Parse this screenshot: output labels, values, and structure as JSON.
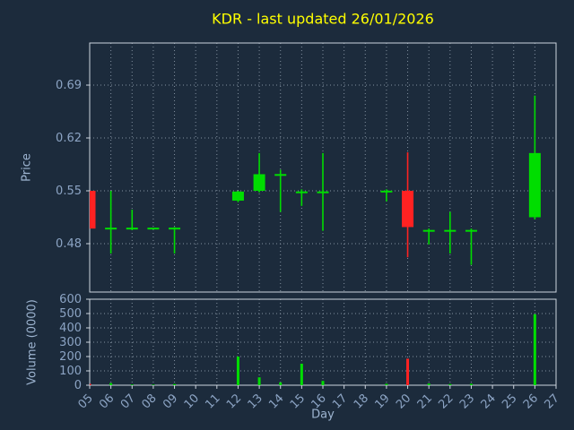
{
  "title": "KDR - last updated 26/01/2026",
  "colors": {
    "background": "#1c2b3c",
    "title": "#ffff00",
    "axis_label": "#9db4d0",
    "tick_label": "#8ca4c4",
    "spine": "#ccd4de",
    "grid": "#b9c6d4",
    "up": "#00dd00",
    "down": "#ff2222"
  },
  "price_axis": {
    "label": "Price",
    "ticks": [
      0.48,
      0.55,
      0.62,
      0.69
    ]
  },
  "volume_axis": {
    "label": "Volume (0000)",
    "ticks": [
      0,
      100,
      200,
      300,
      400,
      500,
      600
    ]
  },
  "x_axis": {
    "label": "Day",
    "tick_labels": [
      "05",
      "06",
      "07",
      "08",
      "09",
      "10",
      "11",
      "12",
      "13",
      "14",
      "15",
      "16",
      "17",
      "18",
      "19",
      "20",
      "21",
      "22",
      "23",
      "24",
      "25",
      "26",
      "27"
    ],
    "min_day": 5,
    "max_day": 27
  },
  "chart_data": {
    "type": "candlestick",
    "title": "KDR - last updated 26/01/2026",
    "xlabel": "Day",
    "ylabel_price": "Price",
    "ylabel_volume": "Volume (0000)",
    "price_ticks": [
      0.48,
      0.55,
      0.62,
      0.69
    ],
    "volume_ticks": [
      0,
      100,
      200,
      300,
      400,
      500,
      600
    ],
    "x_tick_labels": [
      "05",
      "06",
      "07",
      "08",
      "09",
      "10",
      "11",
      "12",
      "13",
      "14",
      "15",
      "16",
      "17",
      "18",
      "19",
      "20",
      "21",
      "22",
      "23",
      "24",
      "25",
      "26",
      "27"
    ],
    "grid": "dotted",
    "candles": [
      {
        "day": 5,
        "open": 0.55,
        "high": 0.55,
        "low": 0.5,
        "close": 0.5,
        "volume": 10
      },
      {
        "day": 6,
        "open": 0.5,
        "high": 0.55,
        "low": 0.467,
        "close": 0.5,
        "volume": 15
      },
      {
        "day": 7,
        "open": 0.5,
        "high": 0.525,
        "low": 0.498,
        "close": 0.5,
        "volume": 5
      },
      {
        "day": 8,
        "open": 0.5,
        "high": 0.5,
        "low": 0.5,
        "close": 0.5,
        "volume": 4
      },
      {
        "day": 9,
        "open": 0.5,
        "high": 0.502,
        "low": 0.467,
        "close": 0.5,
        "volume": 8
      },
      {
        "day": 12,
        "open": 0.537,
        "high": 0.55,
        "low": 0.535,
        "close": 0.549,
        "volume": 200
      },
      {
        "day": 13,
        "open": 0.55,
        "high": 0.6,
        "low": 0.548,
        "close": 0.572,
        "volume": 55
      },
      {
        "day": 14,
        "open": 0.571,
        "high": 0.578,
        "low": 0.522,
        "close": 0.571,
        "volume": 20
      },
      {
        "day": 15,
        "open": 0.548,
        "high": 0.552,
        "low": 0.53,
        "close": 0.548,
        "volume": 150
      },
      {
        "day": 16,
        "open": 0.548,
        "high": 0.6,
        "low": 0.497,
        "close": 0.548,
        "volume": 30
      },
      {
        "day": 19,
        "open": 0.549,
        "high": 0.552,
        "low": 0.536,
        "close": 0.549,
        "volume": 10
      },
      {
        "day": 20,
        "open": 0.55,
        "high": 0.601,
        "low": 0.462,
        "close": 0.502,
        "volume": 185
      },
      {
        "day": 21,
        "open": 0.497,
        "high": 0.5,
        "low": 0.479,
        "close": 0.497,
        "volume": 12
      },
      {
        "day": 22,
        "open": 0.497,
        "high": 0.522,
        "low": 0.467,
        "close": 0.497,
        "volume": 8
      },
      {
        "day": 23,
        "open": 0.497,
        "high": 0.5,
        "low": 0.452,
        "close": 0.497,
        "volume": 10
      },
      {
        "day": 26,
        "open": 0.515,
        "high": 0.676,
        "low": 0.512,
        "close": 0.6,
        "volume": 495
      }
    ]
  }
}
